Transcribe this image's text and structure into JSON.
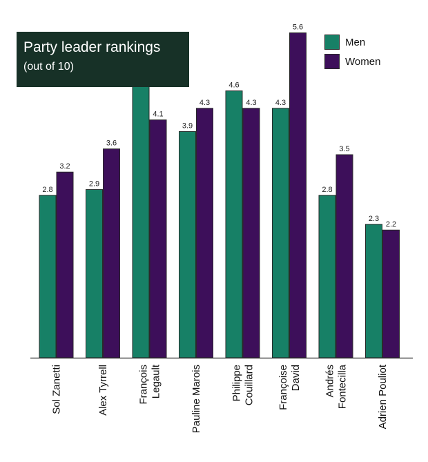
{
  "chart_data": {
    "type": "bar",
    "title": "Party leader rankings",
    "subtitle": "(out of 10)",
    "categories": [
      [
        "Sol Zanetti"
      ],
      [
        "Alex Tyrrell"
      ],
      [
        "François",
        "Legault"
      ],
      [
        "Pauline Marois"
      ],
      [
        "Philippe",
        "Couillard"
      ],
      [
        "Françoise",
        "David"
      ],
      [
        "Andrés",
        "Fontecilla"
      ],
      [
        "Adrien Pouliot"
      ]
    ],
    "series": [
      {
        "name": "Men",
        "values": [
          2.8,
          2.9,
          4.7,
          3.9,
          4.6,
          4.3,
          2.8,
          2.3
        ],
        "color": "#178066"
      },
      {
        "name": "Women",
        "values": [
          3.2,
          3.6,
          4.1,
          4.3,
          4.3,
          5.6,
          3.5,
          2.2
        ],
        "color": "#3d0f5a"
      }
    ],
    "value_labels": {
      "Men": [
        "2.8",
        "2.9",
        "4.7",
        "3.9",
        "4.6",
        "4.3",
        "2.8",
        "2.3"
      ],
      "Women": [
        "3.2",
        "3.6",
        "4.1",
        "4.3",
        "4.3",
        "5.6",
        "3.5",
        "2.2"
      ]
    },
    "ylim": [
      0,
      5.8
    ],
    "legend": "top-right",
    "grid": false
  }
}
